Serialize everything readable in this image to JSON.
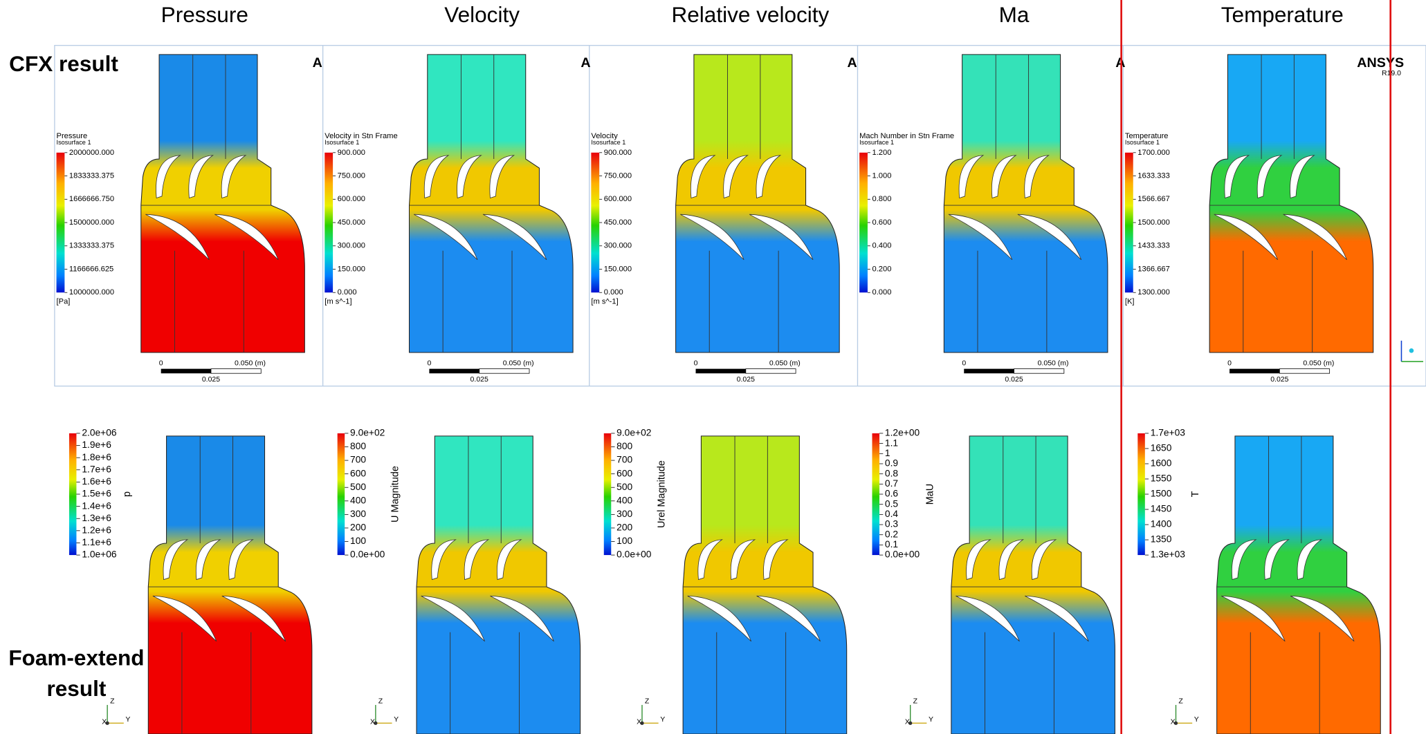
{
  "column_titles": [
    "Pressure",
    "Velocity",
    "Relative velocity",
    "Ma",
    "Temperature"
  ],
  "row_labels": {
    "cfx": "CFX result",
    "foam": [
      "Foam-extend",
      "result"
    ]
  },
  "cfx": {
    "panels": [
      {
        "legend_title": "Pressure",
        "legend_subtitle": "Isosurface 1",
        "ticks": [
          "2000000.000",
          "1833333.375",
          "1666666.750",
          "1500000.000",
          "1333333.375",
          "1166666.625",
          "1000000.000"
        ],
        "unit": "[Pa]",
        "corner": "A"
      },
      {
        "legend_title": "Velocity in Stn Frame",
        "legend_subtitle": "Isosurface 1",
        "ticks": [
          "900.000",
          "750.000",
          "600.000",
          "450.000",
          "300.000",
          "150.000",
          "0.000"
        ],
        "unit": "[m s^-1]",
        "corner": "A"
      },
      {
        "legend_title": "Velocity",
        "legend_subtitle": "Isosurface 1",
        "ticks": [
          "900.000",
          "750.000",
          "600.000",
          "450.000",
          "300.000",
          "150.000",
          "0.000"
        ],
        "unit": "[m s^-1]",
        "corner": "A"
      },
      {
        "legend_title": "Mach Number in Stn Frame",
        "legend_subtitle": "Isosurface 1",
        "ticks": [
          "1.200",
          "1.000",
          "0.800",
          "0.600",
          "0.400",
          "0.200",
          "0.000"
        ],
        "corner": "A"
      },
      {
        "legend_title": "Temperature",
        "legend_subtitle": "Isosurface 1",
        "ticks": [
          "1700.000",
          "1633.333",
          "1566.667",
          "1500.000",
          "1433.333",
          "1366.667",
          "1300.000"
        ],
        "unit": "[K]"
      }
    ],
    "scale_labels": [
      "0",
      "0.050 (m)",
      "0.025"
    ],
    "logo": "ANSYS",
    "version": "R19.0"
  },
  "foam": {
    "panels": [
      {
        "ticks": [
          "2.0e+06",
          "1.9e+6",
          "1.8e+6",
          "1.7e+6",
          "1.6e+6",
          "1.5e+6",
          "1.4e+6",
          "1.3e+6",
          "1.2e+6",
          "1.1e+6",
          "1.0e+06"
        ],
        "label": "p"
      },
      {
        "ticks": [
          "9.0e+02",
          "800",
          "700",
          "600",
          "500",
          "400",
          "300",
          "200",
          "100",
          "0.0e+00"
        ],
        "label": "U Magnitude"
      },
      {
        "ticks": [
          "9.0e+02",
          "800",
          "700",
          "600",
          "500",
          "400",
          "300",
          "200",
          "100",
          "0.0e+00"
        ],
        "label": "Urel Magnitude"
      },
      {
        "ticks": [
          "1.2e+00",
          "1.1",
          "1",
          "0.9",
          "0.8",
          "0.7",
          "0.6",
          "0.5",
          "0.4",
          "0.3",
          "0.2",
          "0.1",
          "0.0e+00"
        ],
        "label": "MaU"
      },
      {
        "ticks": [
          "1.7e+03",
          "1650",
          "1600",
          "1550",
          "1500",
          "1450",
          "1400",
          "1350",
          "1.3e+03"
        ],
        "label": "T"
      }
    ],
    "triad": [
      "Z",
      "X",
      "Y"
    ]
  }
}
